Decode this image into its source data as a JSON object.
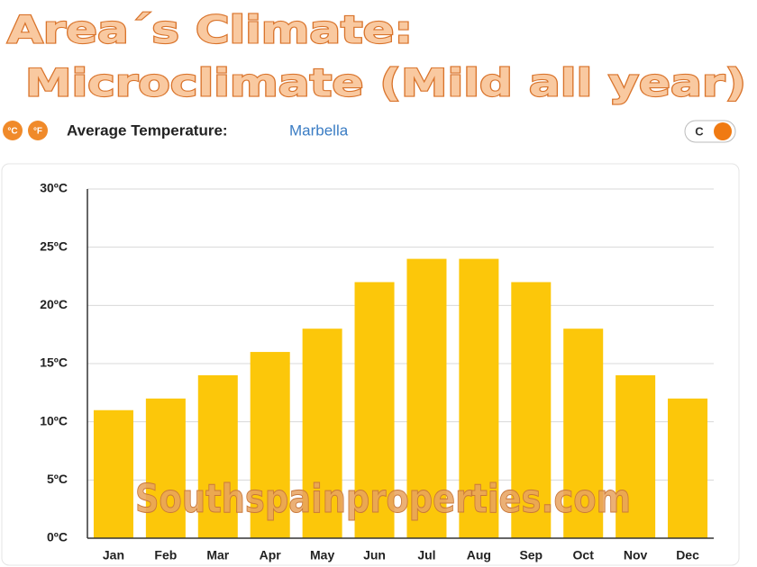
{
  "header": {
    "title_line1": "Area´s Climate:",
    "title_line2": "Microclimate (Mild all year)"
  },
  "toolbar": {
    "unit_c": "°C",
    "unit_f": "°F",
    "label": "Average Temperature:",
    "location": "Marbella",
    "toggle": "C"
  },
  "chart_data": {
    "type": "bar",
    "categories": [
      "Jan",
      "Feb",
      "Mar",
      "Apr",
      "May",
      "Jun",
      "Jul",
      "Aug",
      "Sep",
      "Oct",
      "Nov",
      "Dec"
    ],
    "values": [
      11,
      12,
      14,
      16,
      18,
      22,
      24,
      24,
      22,
      18,
      14,
      12
    ],
    "color": "#fcc70a",
    "ylim": [
      0,
      30
    ],
    "yticks": [
      {
        "value": 0,
        "label": "0ºC"
      },
      {
        "value": 5,
        "label": "5ºC"
      },
      {
        "value": 10,
        "label": "10ºC"
      },
      {
        "value": 15,
        "label": "15ºC"
      },
      {
        "value": 20,
        "label": "20ºC"
      },
      {
        "value": 25,
        "label": "25ºC"
      },
      {
        "value": 30,
        "label": "30ºC"
      }
    ],
    "grid": true,
    "watermark": "Southspainproperties.com"
  }
}
